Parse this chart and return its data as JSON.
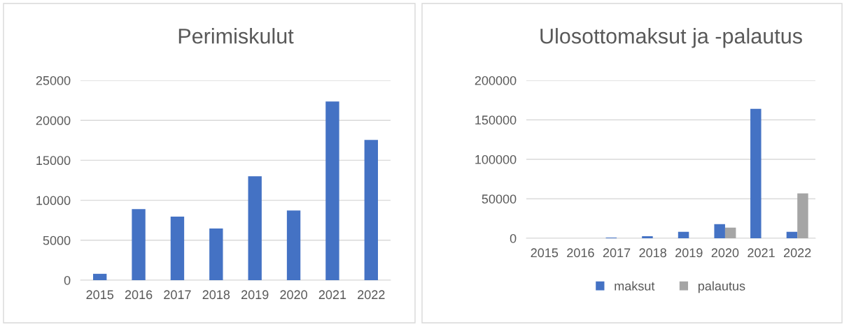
{
  "chart_data": [
    {
      "type": "bar",
      "title": "Perimiskulut",
      "categories": [
        "2015",
        "2016",
        "2017",
        "2018",
        "2019",
        "2020",
        "2021",
        "2022"
      ],
      "series": [
        {
          "color": "#4472c4",
          "values": [
            800,
            8900,
            7950,
            6460,
            13000,
            8730,
            22350,
            17550
          ]
        }
      ],
      "ylim": [
        0,
        25000
      ],
      "yticks": [
        0,
        5000,
        10000,
        15000,
        20000,
        25000
      ],
      "grid": "y",
      "legend": false
    },
    {
      "type": "bar",
      "title": "Ulosottomaksut ja -palautus",
      "categories": [
        "2015",
        "2016",
        "2017",
        "2018",
        "2019",
        "2020",
        "2021",
        "2022"
      ],
      "series": [
        {
          "name": "maksut",
          "color": "#4472c4",
          "values": [
            0,
            0,
            900,
            2600,
            8200,
            17900,
            164000,
            8200
          ]
        },
        {
          "name": "palautus",
          "color": "#a5a5a5",
          "values": [
            0,
            0,
            0,
            0,
            0,
            13500,
            0,
            56800
          ]
        }
      ],
      "ylim": [
        0,
        200000
      ],
      "yticks": [
        0,
        50000,
        100000,
        150000,
        200000
      ],
      "grid": "y",
      "legend": "bottom"
    }
  ]
}
